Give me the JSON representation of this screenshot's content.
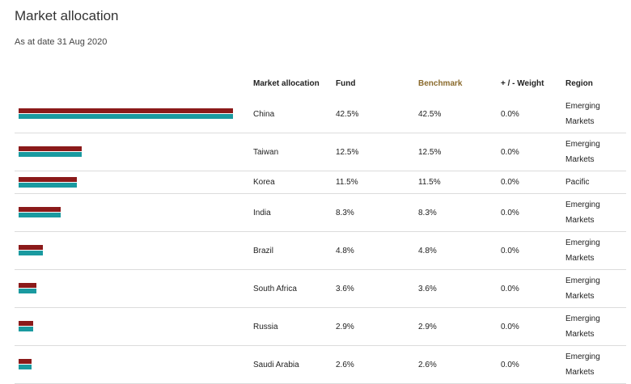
{
  "title": "Market allocation",
  "as_at": "As at date 31 Aug 2020",
  "colors": {
    "fund_bar": "#8b1a1a",
    "benchmark_bar": "#1a9aa0",
    "benchmark_header": "#8a6a2c"
  },
  "headers": {
    "market": "Market allocation",
    "fund": "Fund",
    "benchmark": "Benchmark",
    "weight": "+ / - Weight",
    "region": "Region"
  },
  "scale_max": 42.5,
  "rows": [
    {
      "market": "China",
      "fund": "42.5%",
      "benchmark": "42.5%",
      "weight": "0.0%",
      "region": "Emerging Markets",
      "fund_value": 42.5,
      "benchmark_value": 42.5
    },
    {
      "market": "Taiwan",
      "fund": "12.5%",
      "benchmark": "12.5%",
      "weight": "0.0%",
      "region": "Emerging Markets",
      "fund_value": 12.5,
      "benchmark_value": 12.5
    },
    {
      "market": "Korea",
      "fund": "11.5%",
      "benchmark": "11.5%",
      "weight": "0.0%",
      "region": "Pacific",
      "fund_value": 11.5,
      "benchmark_value": 11.5
    },
    {
      "market": "India",
      "fund": "8.3%",
      "benchmark": "8.3%",
      "weight": "0.0%",
      "region": "Emerging Markets",
      "fund_value": 8.3,
      "benchmark_value": 8.3
    },
    {
      "market": "Brazil",
      "fund": "4.8%",
      "benchmark": "4.8%",
      "weight": "0.0%",
      "region": "Emerging Markets",
      "fund_value": 4.8,
      "benchmark_value": 4.8
    },
    {
      "market": "South Africa",
      "fund": "3.6%",
      "benchmark": "3.6%",
      "weight": "0.0%",
      "region": "Emerging Markets",
      "fund_value": 3.6,
      "benchmark_value": 3.6
    },
    {
      "market": "Russia",
      "fund": "2.9%",
      "benchmark": "2.9%",
      "weight": "0.0%",
      "region": "Emerging Markets",
      "fund_value": 2.9,
      "benchmark_value": 2.9
    },
    {
      "market": "Saudi Arabia",
      "fund": "2.6%",
      "benchmark": "2.6%",
      "weight": "0.0%",
      "region": "Emerging Markets",
      "fund_value": 2.6,
      "benchmark_value": 2.6
    }
  ]
}
